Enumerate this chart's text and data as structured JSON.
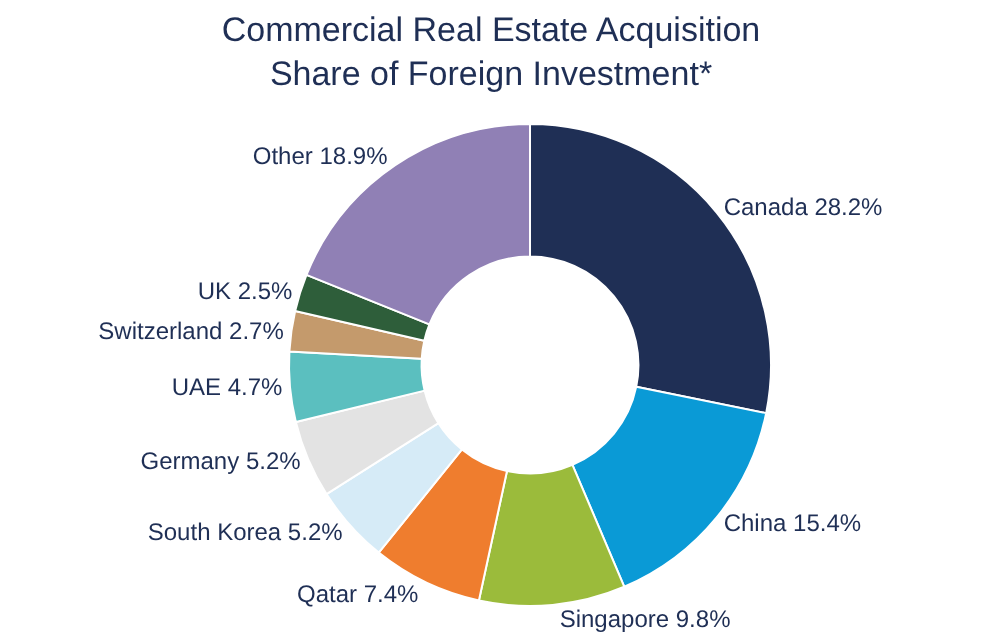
{
  "chart_data": {
    "type": "donut",
    "title": "Commercial Real Estate Acquisition\nShare of Foreign Investment*",
    "categories": [
      "Canada",
      "China",
      "Singapore",
      "Qatar",
      "South Korea",
      "Germany",
      "UAE",
      "Switzerland",
      "UK",
      "Other"
    ],
    "values": [
      28.2,
      15.4,
      9.8,
      7.4,
      5.2,
      5.2,
      4.7,
      2.7,
      2.5,
      18.9
    ],
    "value_labels": [
      "28.2%",
      "15.4%",
      "9.8%",
      "7.4%",
      "5.2%",
      "5.2%",
      "4.7%",
      "2.7%",
      "2.5%",
      "18.9%"
    ],
    "colors": [
      "#1f2f55",
      "#0a9ad6",
      "#9bbb3b",
      "#ef7d2e",
      "#d6ebf7",
      "#e3e3e3",
      "#5bbfbf",
      "#c49a6c",
      "#2e5e3a",
      "#9080b5"
    ],
    "legend": false
  }
}
